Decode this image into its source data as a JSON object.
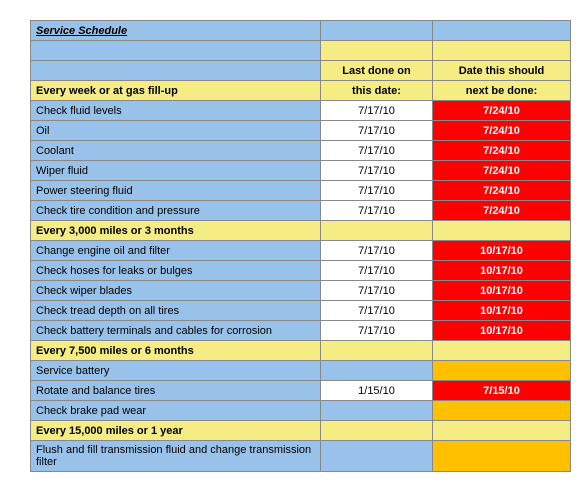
{
  "colors": {
    "yellow": "#f5ed83",
    "blue": "#99c2eb",
    "red": "#ff0000",
    "orange": "#ffc000",
    "white": "#ffffff",
    "redText": "#ffffff"
  },
  "title": "Service Schedule",
  "header": {
    "line1_last": "Last done on",
    "line1_due": "Date this should",
    "line2_label": "Every week or at gas fill-up",
    "line2_last": "this date:",
    "line2_due": "next be done:"
  },
  "sections": [
    {
      "heading": null,
      "rows": [
        {
          "label": "Check fluid levels",
          "last": "7/17/10",
          "due": "7/24/10",
          "dueStyle": "red"
        },
        {
          "label": "Oil",
          "last": "7/17/10",
          "due": "7/24/10",
          "dueStyle": "red"
        },
        {
          "label": "Coolant",
          "last": "7/17/10",
          "due": "7/24/10",
          "dueStyle": "red"
        },
        {
          "label": "Wiper fluid",
          "last": "7/17/10",
          "due": "7/24/10",
          "dueStyle": "red"
        },
        {
          "label": "Power steering fluid",
          "last": "7/17/10",
          "due": "7/24/10",
          "dueStyle": "red"
        },
        {
          "label": "Check tire condition and pressure",
          "last": "7/17/10",
          "due": "7/24/10",
          "dueStyle": "red"
        }
      ]
    },
    {
      "heading": "Every 3,000 miles or 3 months",
      "rows": [
        {
          "label": "Change engine oil and filter",
          "last": "7/17/10",
          "due": "10/17/10",
          "dueStyle": "red"
        },
        {
          "label": "Check hoses for leaks or bulges",
          "last": "7/17/10",
          "due": "10/17/10",
          "dueStyle": "red"
        },
        {
          "label": "Check wiper blades",
          "last": "7/17/10",
          "due": "10/17/10",
          "dueStyle": "red"
        },
        {
          "label": "Check tread depth on all tires",
          "last": "7/17/10",
          "due": "10/17/10",
          "dueStyle": "red"
        },
        {
          "label": "Check battery terminals and cables for corrosion",
          "last": "7/17/10",
          "due": "10/17/10",
          "dueStyle": "red"
        }
      ]
    },
    {
      "heading": "Every 7,500 miles or 6 months",
      "rows": [
        {
          "label": "Service battery",
          "last": "",
          "due": "",
          "dueStyle": "orange"
        },
        {
          "label": "Rotate and balance tires",
          "last": "1/15/10",
          "due": "7/15/10",
          "dueStyle": "red"
        },
        {
          "label": "Check brake pad wear",
          "last": "",
          "due": "",
          "dueStyle": "orange"
        }
      ]
    },
    {
      "heading": "Every 15,000 miles or 1 year",
      "rows": [
        {
          "label": "Flush and fill transmission fluid and change transmission filter",
          "last": "",
          "due": "",
          "dueStyle": "orange"
        }
      ]
    }
  ]
}
